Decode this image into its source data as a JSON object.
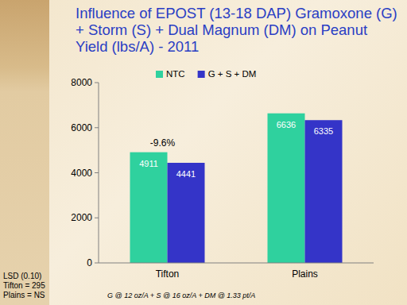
{
  "chart_data": {
    "type": "bar",
    "title": "Influence of EPOST (13-18 DAP) Gramoxone (G) + Storm (S) + Dual Magnum (DM) on Peanut Yield (lbs/A) - 2011",
    "categories": [
      "Tifton",
      "Plains"
    ],
    "series": [
      {
        "name": "NTC",
        "color": "#2fd19e",
        "values": [
          4911,
          6636
        ]
      },
      {
        "name": "G + S + DM",
        "color": "#3434c8",
        "values": [
          4441,
          6335
        ]
      }
    ],
    "ylim": [
      0,
      8000
    ],
    "yticks": [
      0,
      2000,
      4000,
      6000,
      8000
    ],
    "grid": false,
    "legend": "top",
    "data_labels": true,
    "annotations": [
      {
        "text": "-9.6%",
        "category": "Tifton"
      }
    ],
    "notes": [
      "LSD (0.10)",
      "Tifton = 295",
      "Plains = NS"
    ],
    "footnote": "G @ 12 oz/A + S @ 16 oz/A + DM @ 1.33 pt/A"
  }
}
